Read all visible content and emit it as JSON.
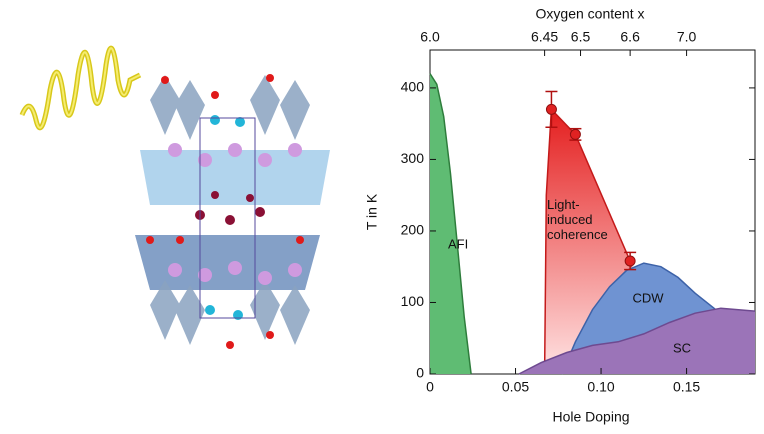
{
  "chart_data": {
    "type": "area",
    "xlabel": "Hole Doping",
    "ylabel": "T in K",
    "x2label": "Oxygen content x",
    "xlim": [
      0,
      0.19
    ],
    "ylim": [
      0,
      453
    ],
    "xticks": [
      0,
      0.05,
      {
        "value": 0.1,
        "label": "0.10"
      },
      0.15
    ],
    "yticks": [
      0,
      100,
      200,
      300,
      400
    ],
    "x2ticks": [
      {
        "value": 0,
        "label": "6.0"
      },
      {
        "value": 0.067,
        "label": "6.45"
      },
      {
        "value": 0.088,
        "label": "6.5"
      },
      {
        "value": 0.117,
        "label": "6.6"
      },
      {
        "value": 0.15,
        "label": "7.0"
      }
    ],
    "series": [
      {
        "name": "AFI",
        "color": "#5fbc73",
        "x": [
          0,
          0.004,
          0.008,
          0.012,
          0.016,
          0.02,
          0.024
        ],
        "values": [
          420,
          405,
          360,
          280,
          180,
          80,
          0
        ]
      },
      {
        "name": "Light-induced coherence",
        "color": "#e83a3a",
        "x": [
          0.067,
          0.068,
          0.071,
          0.085,
          0.117,
          0.118
        ],
        "values": [
          0,
          250,
          370,
          335,
          158,
          150
        ]
      },
      {
        "name": "CDW",
        "color": "#6f93d2",
        "x": [
          0.077,
          0.085,
          0.095,
          0.105,
          0.115,
          0.125,
          0.135,
          0.145,
          0.155,
          0.167
        ],
        "values": [
          0,
          45,
          90,
          122,
          145,
          155,
          150,
          135,
          113,
          90
        ]
      },
      {
        "name": "SC",
        "color": "#9b74b8",
        "x": [
          0.052,
          0.065,
          0.08,
          0.095,
          0.11,
          0.125,
          0.14,
          0.155,
          0.17,
          0.19
        ],
        "values": [
          0,
          16,
          30,
          40,
          45,
          56,
          72,
          85,
          92,
          88
        ]
      }
    ],
    "points": {
      "color": "#e02222",
      "x": [
        0.071,
        0.085,
        0.117
      ],
      "values": [
        370,
        335,
        158
      ],
      "errors": [
        25,
        8,
        12
      ]
    }
  }
}
